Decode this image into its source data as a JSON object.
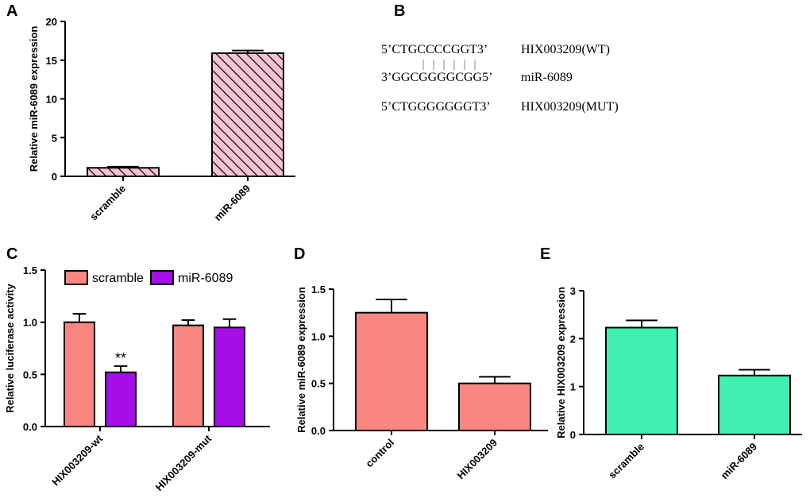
{
  "panel_labels": [
    "A",
    "B",
    "C",
    "D",
    "E"
  ],
  "chart_data": [
    {
      "id": "A",
      "type": "bar",
      "categories": [
        "scramble",
        "miR-6089"
      ],
      "values": [
        1.1,
        15.9
      ],
      "errors": [
        0.15,
        0.35
      ],
      "ylabel": "Relative miR-6089 expression",
      "ylim": [
        0,
        20
      ],
      "yticks": [
        "0",
        "5",
        "10",
        "15",
        "20"
      ],
      "color": "#f6c3d6",
      "pattern": "diagonal-stripes"
    },
    {
      "id": "C",
      "type": "bar",
      "categories": [
        "HIX003209-wt",
        "HIX003209-mut"
      ],
      "series": [
        {
          "name": "scramble",
          "color": "#f98680",
          "values": [
            1.0,
            0.97
          ],
          "errors": [
            0.08,
            0.05
          ]
        },
        {
          "name": "miR-6089",
          "color": "#a50ee6",
          "values": [
            0.52,
            0.95
          ],
          "errors": [
            0.06,
            0.08
          ]
        }
      ],
      "annotations": [
        "**"
      ],
      "ylabel": "Relative luciferase activity",
      "ylim": [
        0,
        1.5
      ],
      "yticks": [
        "0.0",
        "0.5",
        "1.0",
        "1.5"
      ],
      "legend": "top"
    },
    {
      "id": "D",
      "type": "bar",
      "categories": [
        "control",
        "HIX003209"
      ],
      "values": [
        1.25,
        0.5
      ],
      "errors": [
        0.14,
        0.07
      ],
      "ylabel": "Relative miR-6089 expression",
      "ylim": [
        0,
        1.5
      ],
      "yticks": [
        "0.0",
        "0.5",
        "1.0",
        "1.5"
      ],
      "color": "#f98680"
    },
    {
      "id": "E",
      "type": "bar",
      "categories": [
        "scramble",
        "miR-6089"
      ],
      "values": [
        2.23,
        1.23
      ],
      "errors": [
        0.15,
        0.12
      ],
      "ylabel": "Relative HIX003209 expression",
      "ylim": [
        0,
        3
      ],
      "yticks": [
        "0",
        "1",
        "2",
        "3"
      ],
      "color": "#3ff0b0"
    }
  ],
  "sequences": {
    "wt": "5’CTGCCCCGGT3’",
    "wt_label": "HIX003209(WT)",
    "mir": "3’GGCGGGGCGG5’",
    "mir_label": "miR-6089",
    "mut": "5’CTGGGGGGGT3’",
    "mut_label": "HIX003209(MUT)"
  }
}
